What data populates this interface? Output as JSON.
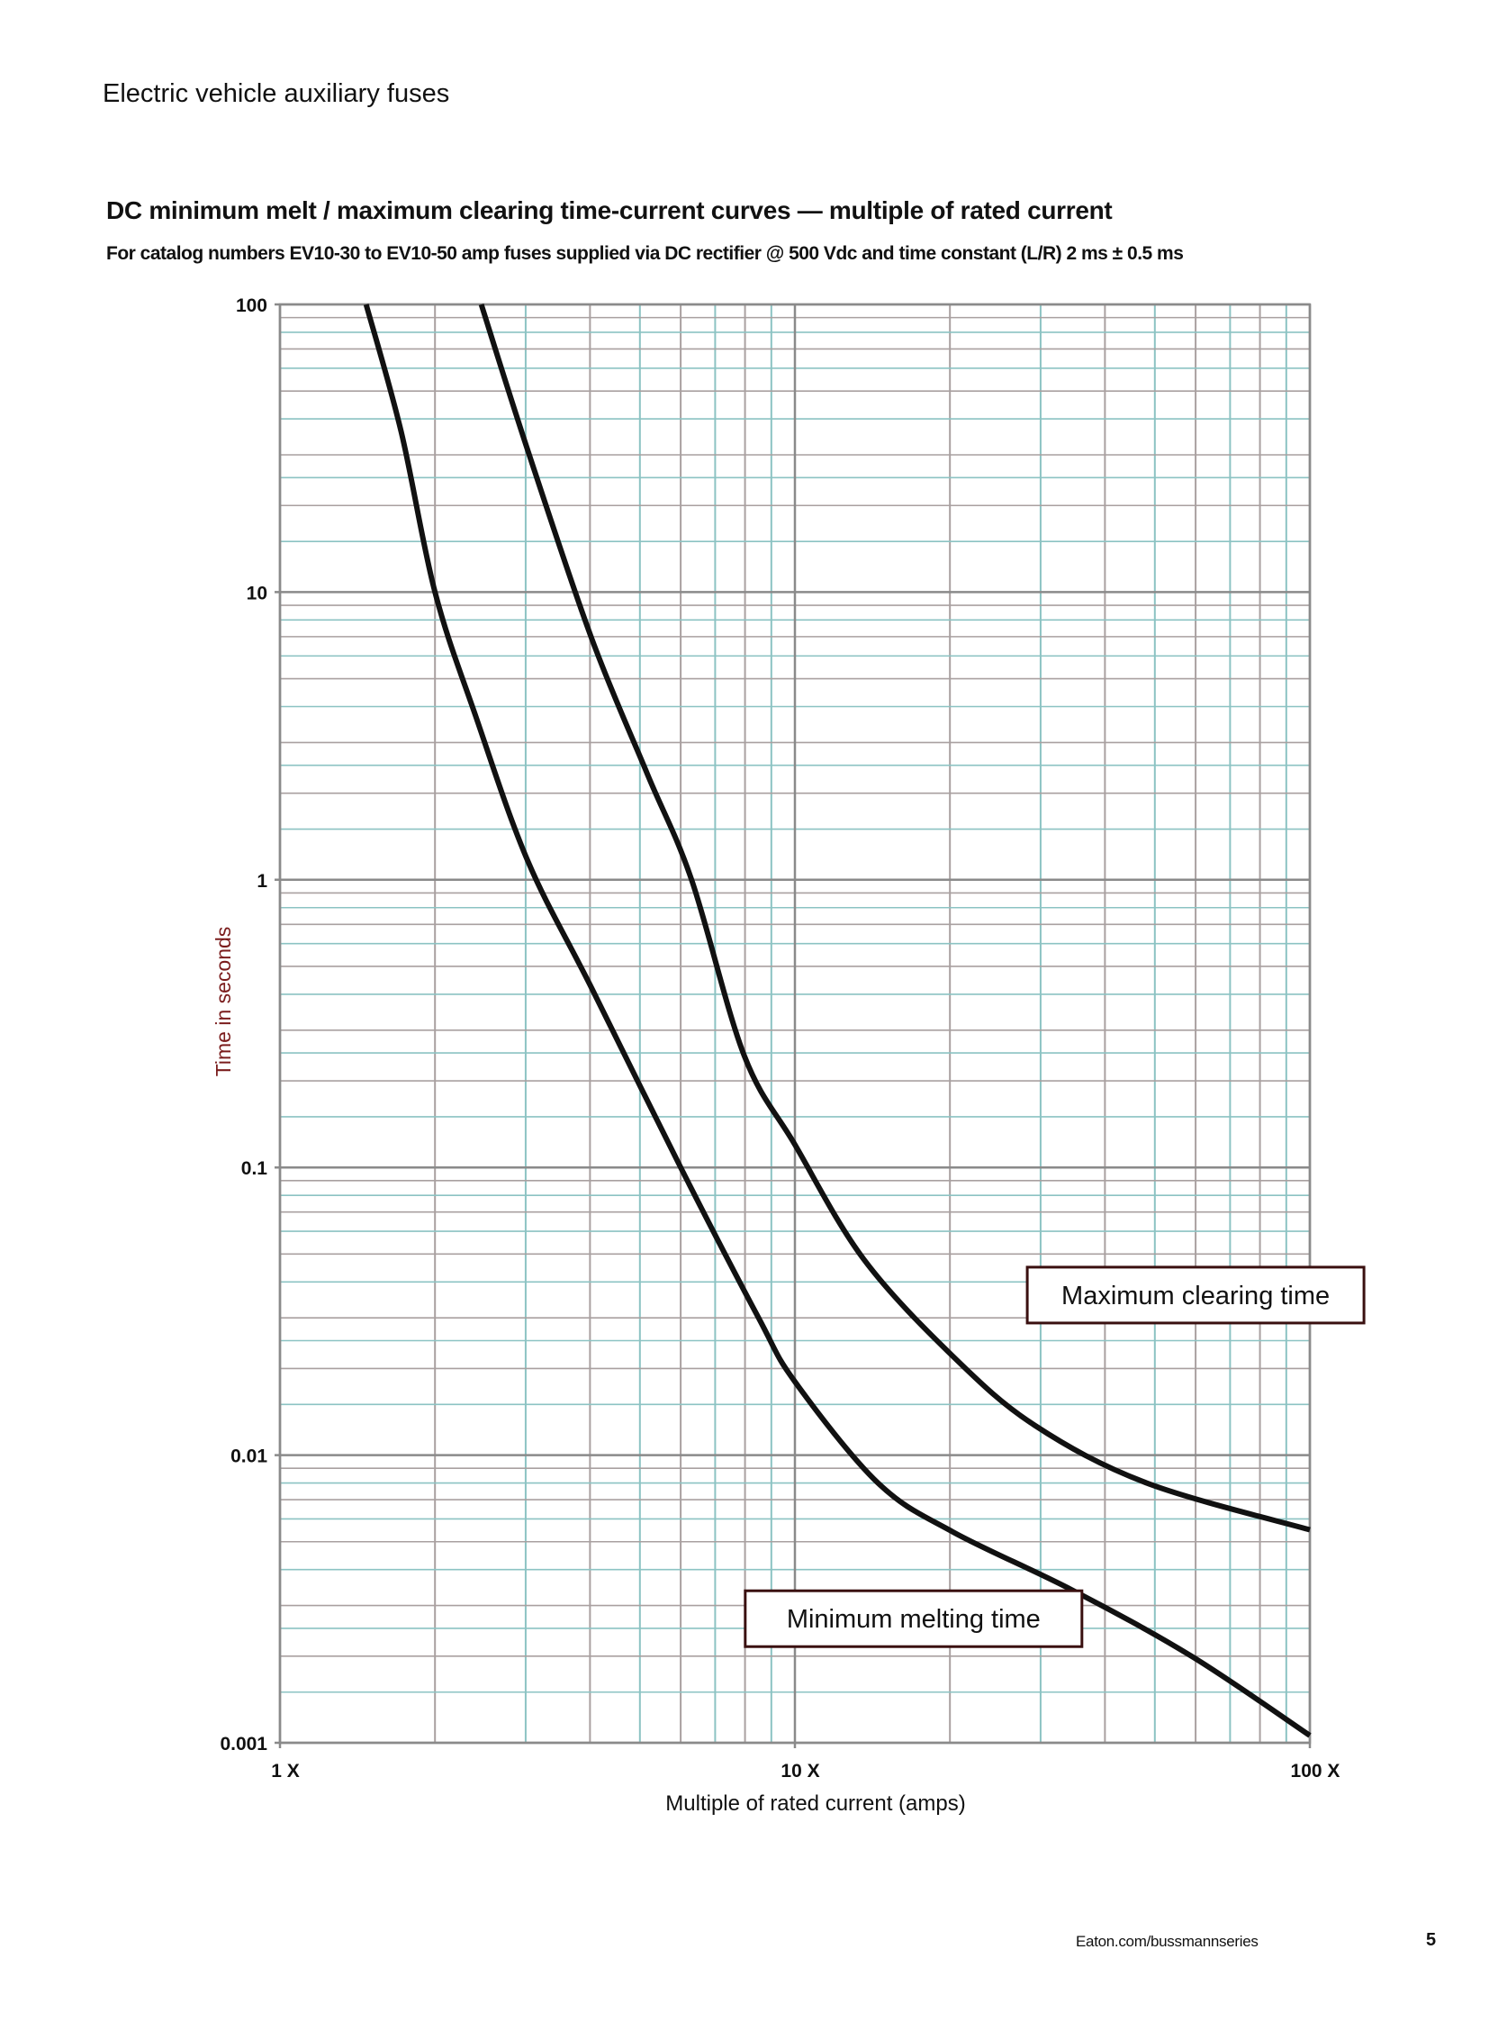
{
  "header": {
    "section": "Electric vehicle auxiliary fuses"
  },
  "chart_data": {
    "type": "line",
    "title": "DC minimum melt / maximum clearing time-current curves — multiple of rated current",
    "subtitle": "For catalog numbers EV10-30 to EV10-50 amp fuses supplied via DC rectifier @ 500 Vdc and time constant (L/R) 2 ms ± 0.5 ms",
    "xlabel": "Multiple of rated current (amps)",
    "ylabel": "Time in seconds",
    "xscale": "log",
    "yscale": "log",
    "xlim": [
      1,
      100
    ],
    "ylim": [
      0.001,
      100
    ],
    "grid": true,
    "x_ticks": [
      {
        "value": 1,
        "label": "1 X"
      },
      {
        "value": 10,
        "label": "10 X"
      },
      {
        "value": 100,
        "label": "100 X"
      }
    ],
    "y_ticks": [
      {
        "value": 100,
        "label": "100"
      },
      {
        "value": 10,
        "label": "10"
      },
      {
        "value": 1,
        "label": "1"
      },
      {
        "value": 0.1,
        "label": "0.1"
      },
      {
        "value": 0.01,
        "label": "0.01"
      },
      {
        "value": 0.001,
        "label": "0.001"
      }
    ],
    "grid_colors": {
      "major": "#a9a0a0",
      "minor": "#8cc3c3"
    },
    "series": [
      {
        "name": "Minimum melting time",
        "color": "#111111",
        "points": [
          [
            1.47,
            100
          ],
          [
            1.72,
            36
          ],
          [
            2.0,
            10
          ],
          [
            2.4,
            3.7
          ],
          [
            3.03,
            1.16
          ],
          [
            4.03,
            0.42
          ],
          [
            6.0,
            0.1
          ],
          [
            8.5,
            0.03
          ],
          [
            10,
            0.018
          ],
          [
            14.5,
            0.008
          ],
          [
            20.3,
            0.0054
          ],
          [
            34.5,
            0.0034
          ],
          [
            58.9,
            0.002
          ],
          [
            100,
            0.00106
          ]
        ]
      },
      {
        "name": "Maximum clearing time",
        "color": "#111111",
        "points": [
          [
            2.46,
            100
          ],
          [
            3.03,
            31
          ],
          [
            4.03,
            6.9
          ],
          [
            5.17,
            2.33
          ],
          [
            6.3,
            1.0
          ],
          [
            7.97,
            0.245
          ],
          [
            10,
            0.12
          ],
          [
            13.6,
            0.048
          ],
          [
            20.3,
            0.022
          ],
          [
            29.2,
            0.0127
          ],
          [
            48.2,
            0.008
          ],
          [
            100,
            0.0055
          ]
        ]
      }
    ]
  },
  "footer": {
    "url": "Eaton.com/bussmannseries",
    "page": "5"
  }
}
